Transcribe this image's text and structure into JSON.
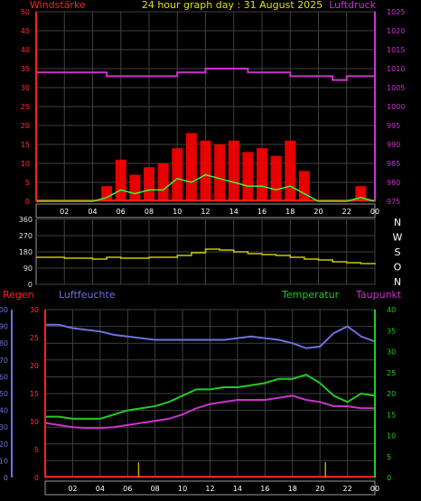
{
  "header": {
    "left": "Windstärke",
    "center": "24 hour graph day : 31 August 2025",
    "right": "Luftdruck"
  },
  "colors": {
    "wind": "#ff2020",
    "gust": "#ff0000",
    "wind_avg": "#30ff30",
    "pressure": "#cc33cc",
    "direction": "#c8c800",
    "humidity": "#7070e0",
    "temperature": "#22cc22",
    "dewpoint": "#cc33cc",
    "rain": "#ff2020",
    "rain_marks": "#c8a000",
    "axis_left": "#ff3030",
    "axis_right_top": "#cc33cc",
    "axis_right_bottom": "#22cc22",
    "axis_humidity": "#7070e0",
    "time_axis": "#ffffff"
  },
  "time_ticks": [
    "02",
    "04",
    "06",
    "08",
    "10",
    "12",
    "14",
    "16",
    "18",
    "20",
    "22",
    "00"
  ],
  "chart_data": [
    {
      "type": "line",
      "panel": "wind_pressure",
      "left_axis": {
        "label": "Windstärke",
        "ylim": [
          0,
          50
        ],
        "ticks": [
          "0",
          "5",
          "10",
          "15",
          "20",
          "25",
          "30",
          "35",
          "40",
          "45",
          "50"
        ]
      },
      "right_axis": {
        "label": "Luftdruck",
        "ylim": [
          975,
          1025
        ],
        "ticks": [
          "975",
          "980",
          "985",
          "990",
          "995",
          "1000",
          "1005",
          "1010",
          "1015",
          "1020",
          "1025"
        ]
      },
      "x": [
        0,
        1,
        2,
        3,
        4,
        5,
        6,
        7,
        8,
        9,
        10,
        11,
        12,
        13,
        14,
        15,
        16,
        17,
        18,
        19,
        20,
        21,
        22,
        23,
        24
      ],
      "series": [
        {
          "name": "Windstärke",
          "axis": "left",
          "kind": "gust_bars",
          "values": [
            0,
            0,
            0,
            0,
            0,
            4,
            11,
            7,
            9,
            10,
            14,
            18,
            16,
            15,
            16,
            13,
            14,
            12,
            16,
            8,
            0,
            0,
            0,
            4,
            0
          ]
        },
        {
          "name": "Windmittel",
          "axis": "left",
          "kind": "line",
          "values": [
            0,
            0,
            0,
            0,
            0,
            1,
            3,
            2,
            3,
            3,
            6,
            5,
            7,
            6,
            5,
            4,
            4,
            3,
            4,
            2,
            0,
            0,
            0,
            1,
            0
          ]
        },
        {
          "name": "Luftdruck",
          "axis": "right",
          "kind": "line",
          "values": [
            1009,
            1009,
            1009,
            1009,
            1009,
            1008,
            1008,
            1008,
            1008,
            1008,
            1009,
            1009,
            1010,
            1010,
            1010,
            1009,
            1009,
            1009,
            1008,
            1008,
            1008,
            1007,
            1008,
            1008,
            1007
          ]
        }
      ]
    },
    {
      "type": "line",
      "panel": "wind_direction",
      "left_axis": {
        "ylim": [
          0,
          360
        ],
        "ticks": [
          "0",
          "90",
          "180",
          "270",
          "360"
        ]
      },
      "right_axis": {
        "ticks": [
          "N",
          "W",
          "S",
          "O",
          "N"
        ]
      },
      "x": [
        0,
        1,
        2,
        3,
        4,
        5,
        6,
        7,
        8,
        9,
        10,
        11,
        12,
        13,
        14,
        15,
        16,
        17,
        18,
        19,
        20,
        21,
        22,
        23,
        24
      ],
      "series": [
        {
          "name": "Windrichtung",
          "values": [
            150,
            150,
            145,
            145,
            140,
            150,
            145,
            145,
            150,
            150,
            160,
            175,
            195,
            190,
            180,
            170,
            165,
            160,
            150,
            140,
            135,
            125,
            120,
            115,
            110
          ]
        }
      ]
    },
    {
      "type": "line",
      "panel": "climate",
      "labels": {
        "rain": "Regen",
        "humidity": "Luftfeuchte",
        "temperature": "Temperatur",
        "dewpoint": "Taupunkt"
      },
      "rain_axis": {
        "label": "Regen",
        "ylim": [
          0,
          30
        ],
        "ticks": [
          "0",
          "5",
          "10",
          "15",
          "20",
          "25",
          "30"
        ]
      },
      "humidity_axis": {
        "label": "Luftfeuchte",
        "ylim": [
          0,
          100
        ],
        "ticks": [
          "0",
          "10",
          "20",
          "30",
          "40",
          "50",
          "60",
          "70",
          "80",
          "90",
          "100"
        ]
      },
      "temperature_axis": {
        "label": "Temperatur",
        "ylim": [
          0,
          40
        ],
        "ticks": [
          "0",
          "5",
          "10",
          "15",
          "20",
          "25",
          "30",
          "35",
          "40"
        ]
      },
      "x": [
        0,
        1,
        2,
        3,
        4,
        5,
        6,
        7,
        8,
        9,
        10,
        11,
        12,
        13,
        14,
        15,
        16,
        17,
        18,
        19,
        20,
        21,
        22,
        23,
        24
      ],
      "series": [
        {
          "name": "Luftfeuchte",
          "axis": "humidity",
          "values": [
            91,
            91,
            89,
            88,
            87,
            85,
            84,
            83,
            82,
            82,
            82,
            82,
            82,
            82,
            83,
            84,
            83,
            82,
            80,
            77,
            78,
            86,
            90,
            84,
            81
          ]
        },
        {
          "name": "Temperatur",
          "axis": "temperature",
          "values": [
            14.5,
            14.5,
            14.0,
            14.0,
            14.0,
            15.0,
            16.0,
            16.5,
            17.0,
            18.0,
            19.5,
            21.0,
            21.0,
            21.5,
            21.5,
            22.0,
            22.5,
            23.5,
            23.5,
            24.5,
            22.5,
            19.5,
            18.0,
            20.0,
            19.5
          ]
        },
        {
          "name": "Taupunkt",
          "axis": "temperature",
          "values": [
            13.0,
            12.5,
            12.0,
            11.8,
            11.8,
            12.0,
            12.5,
            13.0,
            13.5,
            14.0,
            15.0,
            16.5,
            17.5,
            18.0,
            18.5,
            18.5,
            18.5,
            19.0,
            19.5,
            18.5,
            18.0,
            17.0,
            17.0,
            16.5,
            16.5
          ]
        },
        {
          "name": "Regen",
          "axis": "rain",
          "values": [
            0,
            0,
            0,
            0,
            0,
            0,
            0,
            0,
            0,
            0,
            0,
            0,
            0,
            0,
            0,
            0,
            0,
            0,
            0,
            0,
            0,
            0,
            0,
            0,
            0
          ]
        }
      ],
      "markers_x": [
        6.8,
        20.4
      ]
    }
  ]
}
